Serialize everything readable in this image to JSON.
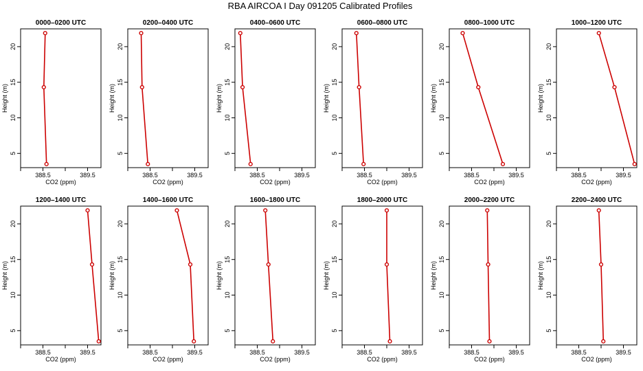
{
  "title": "RBA AIRCOA I  Day 091205  Calibrated Profiles",
  "colors": {
    "line": "#cc0000",
    "axis": "#000000",
    "background": "#ffffff"
  },
  "chart_data": [
    {
      "type": "line",
      "title": "0000–0200 UTC",
      "xlabel": "CO2 (ppm)",
      "ylabel": "Height (m)",
      "xlim": [
        388.0,
        389.8
      ],
      "ylim": [
        3.0,
        22.5
      ],
      "xticks": [
        "388.5",
        "389.5"
      ],
      "xtick_values": [
        388.5,
        389.5
      ],
      "yticks": [
        "5",
        "10",
        "15",
        "20"
      ],
      "ytick_values": [
        5,
        10,
        15,
        20
      ],
      "series": [
        {
          "x": [
            388.55,
            388.52,
            388.58
          ],
          "y": [
            21.9,
            14.3,
            3.5
          ]
        }
      ]
    },
    {
      "type": "line",
      "title": "0200–0400 UTC",
      "xlabel": "CO2 (ppm)",
      "ylabel": "Height (m)",
      "xlim": [
        388.0,
        389.8
      ],
      "ylim": [
        3.0,
        22.5
      ],
      "xticks": [
        "388.5",
        "389.5"
      ],
      "xtick_values": [
        388.5,
        389.5
      ],
      "yticks": [
        "5",
        "10",
        "15",
        "20"
      ],
      "ytick_values": [
        5,
        10,
        15,
        20
      ],
      "series": [
        {
          "x": [
            388.3,
            388.32,
            388.45
          ],
          "y": [
            21.9,
            14.3,
            3.5
          ]
        }
      ]
    },
    {
      "type": "line",
      "title": "0400–0600 UTC",
      "xlabel": "CO2 (ppm)",
      "ylabel": "Height (m)",
      "xlim": [
        388.0,
        389.8
      ],
      "ylim": [
        3.0,
        22.5
      ],
      "xticks": [
        "388.5",
        "389.5"
      ],
      "xtick_values": [
        388.5,
        389.5
      ],
      "yticks": [
        "5",
        "10",
        "15",
        "20"
      ],
      "ytick_values": [
        5,
        10,
        15,
        20
      ],
      "series": [
        {
          "x": [
            388.12,
            388.17,
            388.35
          ],
          "y": [
            21.9,
            14.3,
            3.5
          ]
        }
      ]
    },
    {
      "type": "line",
      "title": "0600–0800 UTC",
      "xlabel": "CO2 (ppm)",
      "ylabel": "Height (m)",
      "xlim": [
        388.0,
        389.8
      ],
      "ylim": [
        3.0,
        22.5
      ],
      "xticks": [
        "388.5",
        "389.5"
      ],
      "xtick_values": [
        388.5,
        389.5
      ],
      "yticks": [
        "5",
        "10",
        "15",
        "20"
      ],
      "ytick_values": [
        5,
        10,
        15,
        20
      ],
      "series": [
        {
          "x": [
            388.32,
            388.38,
            388.48
          ],
          "y": [
            21.9,
            14.3,
            3.5
          ]
        }
      ]
    },
    {
      "type": "line",
      "title": "0800–1000 UTC",
      "xlabel": "CO2 (ppm)",
      "ylabel": "Height (m)",
      "xlim": [
        388.0,
        389.8
      ],
      "ylim": [
        3.0,
        22.5
      ],
      "xticks": [
        "388.5",
        "389.5"
      ],
      "xtick_values": [
        388.5,
        389.5
      ],
      "yticks": [
        "5",
        "10",
        "15",
        "20"
      ],
      "ytick_values": [
        5,
        10,
        15,
        20
      ],
      "series": [
        {
          "x": [
            388.3,
            388.65,
            389.2
          ],
          "y": [
            21.9,
            14.3,
            3.5
          ]
        }
      ]
    },
    {
      "type": "line",
      "title": "1000–1200 UTC",
      "xlabel": "CO2 (ppm)",
      "ylabel": "Height (m)",
      "xlim": [
        388.0,
        389.8
      ],
      "ylim": [
        3.0,
        22.5
      ],
      "xticks": [
        "388.5",
        "389.5"
      ],
      "xtick_values": [
        388.5,
        389.5
      ],
      "yticks": [
        "5",
        "10",
        "15",
        "20"
      ],
      "ytick_values": [
        5,
        10,
        15,
        20
      ],
      "series": [
        {
          "x": [
            388.95,
            389.3,
            389.75
          ],
          "y": [
            21.9,
            14.3,
            3.5
          ]
        }
      ]
    },
    {
      "type": "line",
      "title": "1200–1400 UTC",
      "xlabel": "CO2 (ppm)",
      "ylabel": "Height (m)",
      "xlim": [
        388.0,
        389.8
      ],
      "ylim": [
        3.0,
        22.5
      ],
      "xticks": [
        "388.5",
        "389.5"
      ],
      "xtick_values": [
        388.5,
        389.5
      ],
      "yticks": [
        "5",
        "10",
        "15",
        "20"
      ],
      "ytick_values": [
        5,
        10,
        15,
        20
      ],
      "series": [
        {
          "x": [
            389.5,
            389.6,
            389.75
          ],
          "y": [
            21.9,
            14.3,
            3.5
          ]
        }
      ]
    },
    {
      "type": "line",
      "title": "1400–1600 UTC",
      "xlabel": "CO2 (ppm)",
      "ylabel": "Height (m)",
      "xlim": [
        388.0,
        389.8
      ],
      "ylim": [
        3.0,
        22.5
      ],
      "xticks": [
        "388.5",
        "389.5"
      ],
      "xtick_values": [
        388.5,
        389.5
      ],
      "yticks": [
        "5",
        "10",
        "15",
        "20"
      ],
      "ytick_values": [
        5,
        10,
        15,
        20
      ],
      "series": [
        {
          "x": [
            389.1,
            389.4,
            389.48
          ],
          "y": [
            21.9,
            14.3,
            3.5
          ]
        }
      ]
    },
    {
      "type": "line",
      "title": "1600–1800 UTC",
      "xlabel": "CO2 (ppm)",
      "ylabel": "Height (m)",
      "xlim": [
        388.0,
        389.8
      ],
      "ylim": [
        3.0,
        22.5
      ],
      "xticks": [
        "388.5",
        "389.5"
      ],
      "xtick_values": [
        388.5,
        389.5
      ],
      "yticks": [
        "5",
        "10",
        "15",
        "20"
      ],
      "ytick_values": [
        5,
        10,
        15,
        20
      ],
      "series": [
        {
          "x": [
            388.68,
            388.75,
            388.85
          ],
          "y": [
            21.9,
            14.3,
            3.5
          ]
        }
      ]
    },
    {
      "type": "line",
      "title": "1800–2000 UTC",
      "xlabel": "CO2 (ppm)",
      "ylabel": "Height (m)",
      "xlim": [
        388.0,
        389.8
      ],
      "ylim": [
        3.0,
        22.5
      ],
      "xticks": [
        "388.5",
        "389.5"
      ],
      "xtick_values": [
        388.5,
        389.5
      ],
      "yticks": [
        "5",
        "10",
        "15",
        "20"
      ],
      "ytick_values": [
        5,
        10,
        15,
        20
      ],
      "series": [
        {
          "x": [
            389.0,
            389.0,
            389.07
          ],
          "y": [
            21.9,
            14.3,
            3.5
          ]
        }
      ]
    },
    {
      "type": "line",
      "title": "2000–2200 UTC",
      "xlabel": "CO2 (ppm)",
      "ylabel": "Height (m)",
      "xlim": [
        388.0,
        389.8
      ],
      "ylim": [
        3.0,
        22.5
      ],
      "xticks": [
        "388.5",
        "389.5"
      ],
      "xtick_values": [
        388.5,
        389.5
      ],
      "yticks": [
        "5",
        "10",
        "15",
        "20"
      ],
      "ytick_values": [
        5,
        10,
        15,
        20
      ],
      "series": [
        {
          "x": [
            388.85,
            388.87,
            388.9
          ],
          "y": [
            21.9,
            14.3,
            3.5
          ]
        }
      ]
    },
    {
      "type": "line",
      "title": "2200–2400 UTC",
      "xlabel": "CO2 (ppm)",
      "ylabel": "Height (m)",
      "xlim": [
        388.0,
        389.8
      ],
      "ylim": [
        3.0,
        22.5
      ],
      "xticks": [
        "388.5",
        "389.5"
      ],
      "xtick_values": [
        388.5,
        389.5
      ],
      "yticks": [
        "5",
        "10",
        "15",
        "20"
      ],
      "ytick_values": [
        5,
        10,
        15,
        20
      ],
      "series": [
        {
          "x": [
            388.95,
            389.0,
            389.05
          ],
          "y": [
            21.9,
            14.3,
            3.5
          ]
        }
      ]
    }
  ]
}
